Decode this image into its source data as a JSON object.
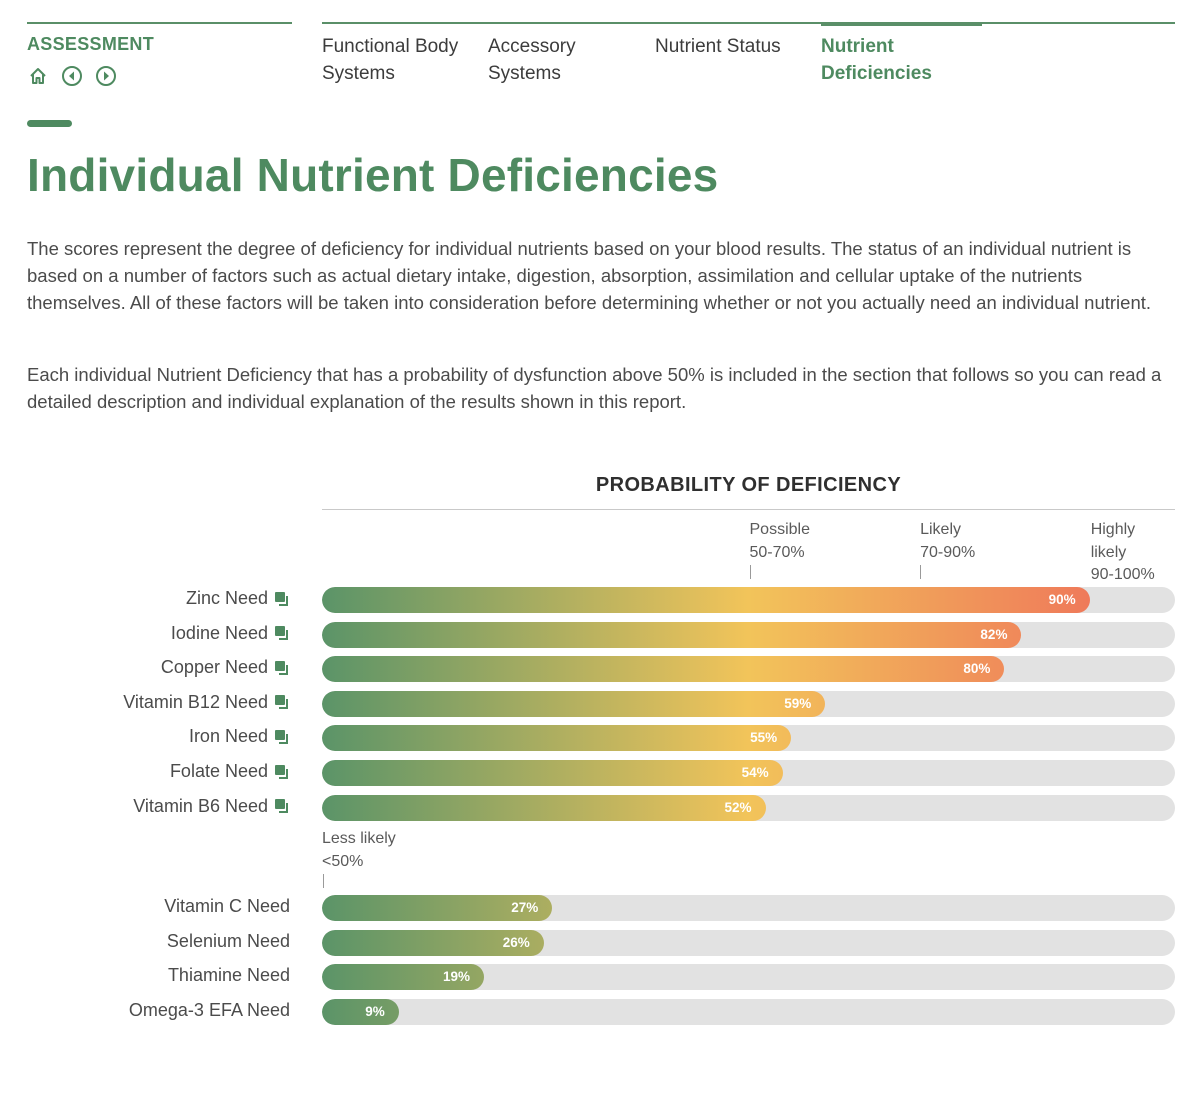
{
  "header": {
    "section_label": "ASSESSMENT",
    "tabs": [
      {
        "label_line1": "Functional Body",
        "label_line2": "Systems",
        "active": false
      },
      {
        "label_line1": "Accessory",
        "label_line2": "Systems",
        "active": false
      },
      {
        "label_line1": "Nutrient Status",
        "label_line2": "",
        "active": false
      },
      {
        "label_line1": "Nutrient",
        "label_line2": "Deficiencies",
        "active": true
      }
    ],
    "icons": [
      "home-icon",
      "previous-icon",
      "next-icon"
    ]
  },
  "page": {
    "title": "Individual Nutrient Deficiencies",
    "paragraph1": "The scores represent the degree of deficiency for individual nutrients based on your blood results. The status of an individual nutrient is based on a number of factors such as actual dietary intake, digestion, absorption, assimilation and cellular uptake of the nutrients themselves. All of these factors will be taken into consideration before determining whether or not you actually need an individual nutrient.",
    "paragraph2": "Each individual Nutrient Deficiency that has a probability of dysfunction above 50% is included in the section that follows so you can read a detailed description and individual explanation of the results shown in this report."
  },
  "colors": {
    "brand_green": "#4e8a60",
    "gradient_start": "#5b9468",
    "gradient_mid": "#f2c45a",
    "gradient_end": "#ef7a5a",
    "track": "#e2e2e2"
  },
  "chart_data": {
    "type": "bar",
    "orientation": "horizontal",
    "title": "PROBABILITY OF DEFICIENCY",
    "xlim": [
      0,
      100
    ],
    "unit": "%",
    "zones": [
      {
        "label_line1": "Possible",
        "label_line2": "50-70%",
        "label_line3": "",
        "start": 50
      },
      {
        "label_line1": "Likely",
        "label_line2": "70-90%",
        "label_line3": "",
        "start": 70
      },
      {
        "label_line1": "Highly",
        "label_line2": "likely",
        "label_line3": "90-100%",
        "start": 90
      },
      {
        "label_line1": "Less likely",
        "label_line2": "<50%",
        "label_line3": "",
        "start": 0
      }
    ],
    "groups": [
      {
        "name": "above 50%",
        "has_link": true,
        "categories": [
          "Zinc Need",
          "Iodine Need",
          "Copper Need",
          "Vitamin B12 Need",
          "Iron Need",
          "Folate Need",
          "Vitamin B6 Need"
        ],
        "values": [
          90,
          82,
          80,
          59,
          55,
          54,
          52
        ],
        "labels": [
          "90%",
          "82%",
          "80%",
          "59%",
          "55%",
          "54%",
          "52%"
        ]
      },
      {
        "name": "below 50%",
        "has_link": false,
        "categories": [
          "Vitamin C Need",
          "Selenium Need",
          "Thiamine Need",
          "Omega-3 EFA Need"
        ],
        "values": [
          27,
          26,
          19,
          9
        ],
        "labels": [
          "27%",
          "26%",
          "19%",
          "9%"
        ]
      }
    ]
  }
}
